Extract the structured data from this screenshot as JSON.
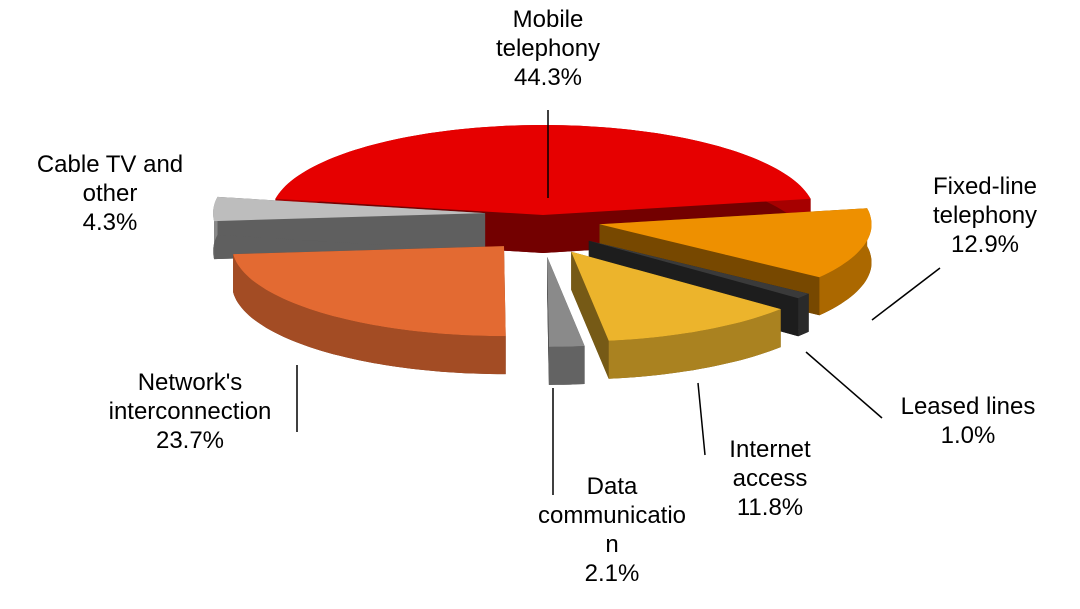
{
  "chart_data": {
    "type": "pie3d",
    "categories": [
      "Mobile telephony",
      "Fixed-line telephony",
      "Leased lines",
      "Internet access",
      "Data communication",
      "Network's interconnection",
      "Cable TV and other"
    ],
    "values": [
      44.3,
      12.9,
      1.0,
      11.8,
      2.1,
      23.7,
      4.3
    ],
    "value_labels": [
      "44.3%",
      "12.9%",
      "1.0%",
      "11.8%",
      "2.1%",
      "23.7%",
      "4.3%"
    ],
    "colors": [
      "#e60000",
      "#ee9000",
      "#3a3a3a",
      "#ecb42c",
      "#8a8a8a",
      "#e36a32",
      "#bdbdbd"
    ]
  }
}
